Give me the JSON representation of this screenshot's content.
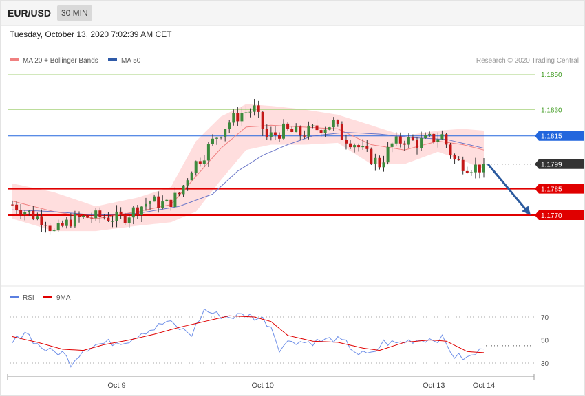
{
  "header": {
    "symbol": "EUR/USD",
    "interval": "30 MIN",
    "datetime": "Tuesday, October 13, 2020 7:02:39 AM CET"
  },
  "legend": {
    "ma20": "MA 20 + Bollinger Bands",
    "ma50": "MA 50",
    "rsi": "RSI",
    "rsi9": "9MA"
  },
  "copyright": "Research © 2020 Trading Central",
  "colors": {
    "up": "#3c8a3c",
    "down": "#c41818",
    "bollinger": "#ffd3d3",
    "ma20": "#f08080",
    "ma50": "#6a76c8",
    "resistance": "#a5d27a",
    "support": "#e00000",
    "pivot": "#2266dd",
    "last": "#333333",
    "arrow": "#2b5a9e",
    "rsi": "#6e8fe8",
    "rsi_ma": "#e00000"
  },
  "chart_data": {
    "type": "candlestick",
    "price_ylim": [
      1.1745,
      1.1855
    ],
    "levels": [
      {
        "value": 1.185,
        "label": "1.1850",
        "kind": "resistance"
      },
      {
        "value": 1.183,
        "label": "1.1830",
        "kind": "resistance"
      },
      {
        "value": 1.1815,
        "label": "1.1815",
        "kind": "pivot"
      },
      {
        "value": 1.1799,
        "label": "1.1799",
        "kind": "last"
      },
      {
        "value": 1.1785,
        "label": "1.1785",
        "kind": "support"
      },
      {
        "value": 1.177,
        "label": "1.1770",
        "kind": "support"
      }
    ],
    "x_labels": [
      "Oct 9",
      "Oct 10",
      "Oct 13",
      "Oct 14"
    ],
    "x_label_index": [
      26,
      61,
      102,
      114
    ],
    "candle_count": 114,
    "anchors": [
      [
        0,
        1.1776
      ],
      [
        5,
        1.177
      ],
      [
        8,
        1.1767
      ],
      [
        10,
        1.176
      ],
      [
        14,
        1.1767
      ],
      [
        18,
        1.1769
      ],
      [
        22,
        1.1769
      ],
      [
        26,
        1.1768
      ],
      [
        30,
        1.1774
      ],
      [
        33,
        1.1778
      ],
      [
        37,
        1.1776
      ],
      [
        40,
        1.1782
      ],
      [
        43,
        1.1797
      ],
      [
        46,
        1.1805
      ],
      [
        49,
        1.1815
      ],
      [
        52,
        1.1823
      ],
      [
        55,
        1.1828
      ],
      [
        58,
        1.183
      ],
      [
        61,
        1.1814
      ],
      [
        65,
        1.1818
      ],
      [
        69,
        1.1816
      ],
      [
        73,
        1.1819
      ],
      [
        77,
        1.1822
      ],
      [
        79,
        1.1815
      ],
      [
        82,
        1.1811
      ],
      [
        85,
        1.1804
      ],
      [
        88,
        1.1799
      ],
      [
        91,
        1.181
      ],
      [
        94,
        1.1813
      ],
      [
        97,
        1.1811
      ],
      [
        100,
        1.1813
      ],
      [
        103,
        1.1815
      ],
      [
        106,
        1.1801
      ],
      [
        109,
        1.1798
      ],
      [
        112,
        1.1797
      ],
      [
        113,
        1.1799
      ]
    ],
    "ma20_anchors": [
      [
        0,
        1.1778
      ],
      [
        10,
        1.1772
      ],
      [
        20,
        1.1768
      ],
      [
        30,
        1.1772
      ],
      [
        38,
        1.1776
      ],
      [
        44,
        1.1792
      ],
      [
        50,
        1.1808
      ],
      [
        56,
        1.182
      ],
      [
        62,
        1.1821
      ],
      [
        70,
        1.182
      ],
      [
        78,
        1.1819
      ],
      [
        86,
        1.181
      ],
      [
        94,
        1.1807
      ],
      [
        102,
        1.1812
      ],
      [
        108,
        1.181
      ],
      [
        113,
        1.1807
      ]
    ],
    "ma50_anchors": [
      [
        0,
        1.1773
      ],
      [
        10,
        1.1772
      ],
      [
        20,
        1.177
      ],
      [
        30,
        1.1771
      ],
      [
        40,
        1.1775
      ],
      [
        48,
        1.1782
      ],
      [
        54,
        1.1795
      ],
      [
        60,
        1.1804
      ],
      [
        66,
        1.181
      ],
      [
        72,
        1.1815
      ],
      [
        80,
        1.1817
      ],
      [
        88,
        1.1816
      ],
      [
        96,
        1.1814
      ],
      [
        104,
        1.1813
      ],
      [
        113,
        1.1808
      ]
    ],
    "band_width_anchors": [
      [
        0,
        0.001
      ],
      [
        10,
        0.0011
      ],
      [
        20,
        0.0007
      ],
      [
        30,
        0.0008
      ],
      [
        38,
        0.001
      ],
      [
        44,
        0.002
      ],
      [
        50,
        0.0018
      ],
      [
        56,
        0.0013
      ],
      [
        62,
        0.0011
      ],
      [
        70,
        0.001
      ],
      [
        78,
        0.0008
      ],
      [
        86,
        0.0011
      ],
      [
        94,
        0.0008
      ],
      [
        102,
        0.0006
      ],
      [
        108,
        0.0009
      ],
      [
        113,
        0.0011
      ]
    ],
    "projection": {
      "from": 1.1799,
      "to": 1.177
    },
    "rsi": {
      "ylim": [
        20,
        80
      ],
      "levels": [
        70,
        50,
        30
      ],
      "series": [
        [
          0,
          47
        ],
        [
          3,
          58
        ],
        [
          6,
          46
        ],
        [
          9,
          40
        ],
        [
          12,
          39
        ],
        [
          14,
          30
        ],
        [
          17,
          42
        ],
        [
          20,
          46
        ],
        [
          24,
          48
        ],
        [
          28,
          50
        ],
        [
          31,
          57
        ],
        [
          34,
          60
        ],
        [
          37,
          66
        ],
        [
          40,
          60
        ],
        [
          43,
          55
        ],
        [
          46,
          76
        ],
        [
          49,
          72
        ],
        [
          52,
          70
        ],
        [
          56,
          72
        ],
        [
          60,
          68
        ],
        [
          62,
          62
        ],
        [
          64,
          43
        ],
        [
          67,
          50
        ],
        [
          70,
          48
        ],
        [
          74,
          49
        ],
        [
          77,
          51
        ],
        [
          80,
          47
        ],
        [
          83,
          38
        ],
        [
          86,
          37
        ],
        [
          89,
          48
        ],
        [
          92,
          47
        ],
        [
          96,
          50
        ],
        [
          100,
          51
        ],
        [
          103,
          51
        ],
        [
          106,
          36
        ],
        [
          109,
          34
        ],
        [
          112,
          40
        ],
        [
          113,
          45
        ]
      ],
      "ma9": [
        [
          0,
          53
        ],
        [
          6,
          48
        ],
        [
          12,
          42
        ],
        [
          17,
          41
        ],
        [
          22,
          46
        ],
        [
          28,
          50
        ],
        [
          34,
          55
        ],
        [
          40,
          61
        ],
        [
          46,
          66
        ],
        [
          52,
          71
        ],
        [
          58,
          70
        ],
        [
          62,
          66
        ],
        [
          66,
          54
        ],
        [
          72,
          49
        ],
        [
          78,
          48
        ],
        [
          84,
          43
        ],
        [
          88,
          41
        ],
        [
          94,
          48
        ],
        [
          100,
          50
        ],
        [
          104,
          49
        ],
        [
          109,
          40
        ],
        [
          113,
          39
        ]
      ]
    }
  }
}
